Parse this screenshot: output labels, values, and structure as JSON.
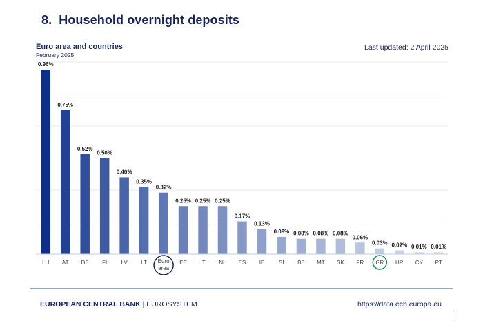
{
  "header": {
    "number": "8.",
    "title": "Household overnight deposits",
    "subtitle": "Euro area and countries",
    "period": "February 2025",
    "last_updated": "Last updated: 2 April 2025"
  },
  "footer": {
    "org": "EUROPEAN CENTRAL BANK",
    "separator": " | ",
    "system": "EUROSYSTEM",
    "url": "https://data.ecb.europa.eu"
  },
  "chart_data": {
    "type": "bar",
    "title": "Household overnight deposits",
    "xlabel": "",
    "ylabel": "",
    "ylim": [
      0,
      1.0
    ],
    "grid": true,
    "categories": [
      "LU",
      "AT",
      "DE",
      "FI",
      "LV",
      "LT",
      "Euro area",
      "EE",
      "IT",
      "NL",
      "ES",
      "IE",
      "SI",
      "BE",
      "MT",
      "SK",
      "FR",
      "GR",
      "HR",
      "CY",
      "PT"
    ],
    "tick_labels": [
      "LU",
      "AT",
      "DE",
      "FI",
      "LV",
      "LT",
      "Euro\narea",
      "EE",
      "IT",
      "NL",
      "ES",
      "IE",
      "SI",
      "BE",
      "MT",
      "SK",
      "FR",
      "GR",
      "HR",
      "CY",
      "PT"
    ],
    "values": [
      0.96,
      0.75,
      0.52,
      0.5,
      0.4,
      0.35,
      0.32,
      0.25,
      0.25,
      0.25,
      0.17,
      0.13,
      0.09,
      0.08,
      0.08,
      0.08,
      0.06,
      0.03,
      0.02,
      0.01,
      0.01
    ],
    "data_labels": [
      "0.96%",
      "0.75%",
      "0.52%",
      "0.50%",
      "0.40%",
      "0.35%",
      "0.32%",
      "0.25%",
      "0.25%",
      "0.25%",
      "0.17%",
      "0.13%",
      "0.09%",
      "0.08%",
      "0.08%",
      "0.08%",
      "0.06%",
      "0.03%",
      "0.02%",
      "0.01%",
      "0.01%"
    ],
    "highlighted": {
      "Euro area": "#17235e",
      "GR": "#1f8a4c"
    },
    "colors": {
      "bar_dark": "#0d2f8a",
      "bar_light": "#d7e0ef",
      "gridline": "#e8ebf1",
      "axis": "#c5cbd6",
      "text": "#17235e"
    }
  }
}
